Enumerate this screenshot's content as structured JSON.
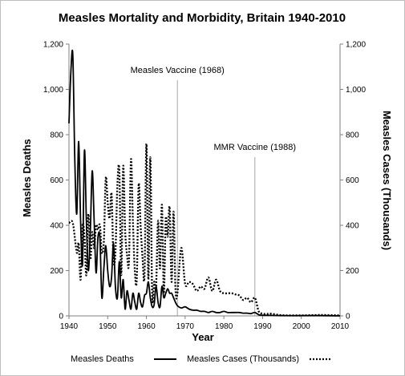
{
  "chart_data": {
    "type": "line",
    "title": "Measles Mortality and Morbidity, Britain 1940-2010",
    "xlabel": "Year",
    "ylabel_left": "Measles Deaths",
    "ylabel_right": "Measles Cases (Thousands)",
    "xlim": [
      1940,
      2010
    ],
    "ylim": [
      0,
      1200
    ],
    "x_ticks": [
      "1940",
      "1950",
      "1960",
      "1970",
      "1980",
      "1990",
      "2000",
      "2010"
    ],
    "y_ticks_left": [
      "0",
      "200",
      "400",
      "600",
      "800",
      "1,000",
      "1,200"
    ],
    "y_ticks_right": [
      "0",
      "200",
      "400",
      "600",
      "800",
      "1,000",
      "1,200"
    ],
    "legend_position": "bottom",
    "annotations": [
      {
        "text": "Measles Vaccine (1968)",
        "x": 1968
      },
      {
        "text": "MMR Vaccine (1988)",
        "x": 1988
      }
    ],
    "series": [
      {
        "name": "Measles Deaths",
        "style": "solid",
        "color": "#000000",
        "x": [
          1940,
          1940.5,
          1941,
          1941.5,
          1942,
          1942.5,
          1943,
          1943.5,
          1944,
          1944.5,
          1945,
          1945.5,
          1946,
          1946.5,
          1947,
          1947.5,
          1948,
          1948.5,
          1949,
          1949.5,
          1950,
          1950.5,
          1951,
          1951.5,
          1952,
          1952.5,
          1953,
          1953.5,
          1954,
          1954.5,
          1955,
          1955.5,
          1956,
          1956.5,
          1957,
          1957.5,
          1958,
          1958.5,
          1959,
          1959.5,
          1960,
          1960.5,
          1961,
          1961.5,
          1962,
          1962.5,
          1963,
          1963.5,
          1964,
          1964.5,
          1965,
          1965.5,
          1966,
          1966.5,
          1967,
          1967.5,
          1968,
          1969,
          1970,
          1971,
          1972,
          1973,
          1974,
          1975,
          1976,
          1977,
          1978,
          1979,
          1980,
          1981,
          1982,
          1983,
          1984,
          1985,
          1986,
          1987,
          1988,
          1989,
          1990,
          1992,
          1995,
          2000,
          2005,
          2010
        ],
        "values": [
          850,
          1080,
          1150,
          700,
          450,
          770,
          420,
          230,
          730,
          420,
          200,
          370,
          640,
          420,
          190,
          350,
          340,
          80,
          210,
          310,
          200,
          130,
          170,
          320,
          130,
          80,
          240,
          80,
          160,
          30,
          110,
          70,
          30,
          100,
          60,
          30,
          100,
          60,
          40,
          90,
          100,
          150,
          80,
          40,
          50,
          130,
          60,
          40,
          130,
          80,
          100,
          120,
          100,
          100,
          80,
          60,
          45,
          35,
          40,
          30,
          25,
          25,
          20,
          20,
          15,
          20,
          15,
          15,
          20,
          15,
          15,
          15,
          15,
          12,
          12,
          10,
          15,
          5,
          3,
          2,
          1,
          1,
          1,
          0
        ]
      },
      {
        "name": "Measles Cases (Thousands)",
        "style": "dotted",
        "color": "#000000",
        "x": [
          1940,
          1941,
          1942,
          1942.5,
          1943,
          1943.5,
          1944,
          1944.5,
          1945,
          1945.5,
          1946,
          1946.5,
          1947,
          1947.5,
          1948,
          1948.5,
          1949,
          1949.5,
          1950,
          1950.5,
          1951,
          1951.5,
          1952,
          1952.5,
          1953,
          1953.5,
          1954,
          1954.5,
          1955,
          1955.5,
          1956,
          1956.5,
          1957,
          1957.5,
          1958,
          1958.5,
          1959,
          1959.5,
          1960,
          1960.5,
          1961,
          1961.5,
          1962,
          1962.5,
          1963,
          1963.5,
          1964,
          1964.5,
          1965,
          1965.5,
          1966,
          1966.5,
          1967,
          1967.5,
          1968,
          1969,
          1970,
          1971,
          1972,
          1973,
          1974,
          1975,
          1976,
          1977,
          1978,
          1979,
          1980,
          1981,
          1982,
          1983,
          1984,
          1985,
          1986,
          1987,
          1988,
          1989,
          1990,
          1991,
          1992,
          1995,
          2000,
          2005,
          2010
        ],
        "values": [
          410,
          410,
          280,
          320,
          160,
          400,
          350,
          180,
          450,
          250,
          370,
          300,
          400,
          380,
          400,
          280,
          330,
          610,
          500,
          430,
          540,
          250,
          280,
          580,
          640,
          180,
          660,
          380,
          270,
          240,
          690,
          420,
          200,
          160,
          580,
          400,
          260,
          180,
          760,
          160,
          700,
          80,
          150,
          130,
          420,
          210,
          490,
          100,
          430,
          350,
          480,
          150,
          460,
          120,
          100,
          300,
          140,
          150,
          140,
          110,
          130,
          120,
          170,
          110,
          160,
          110,
          100,
          100,
          100,
          95,
          90,
          70,
          80,
          60,
          80,
          20,
          10,
          8,
          10,
          3,
          2,
          4,
          2
        ]
      }
    ]
  }
}
